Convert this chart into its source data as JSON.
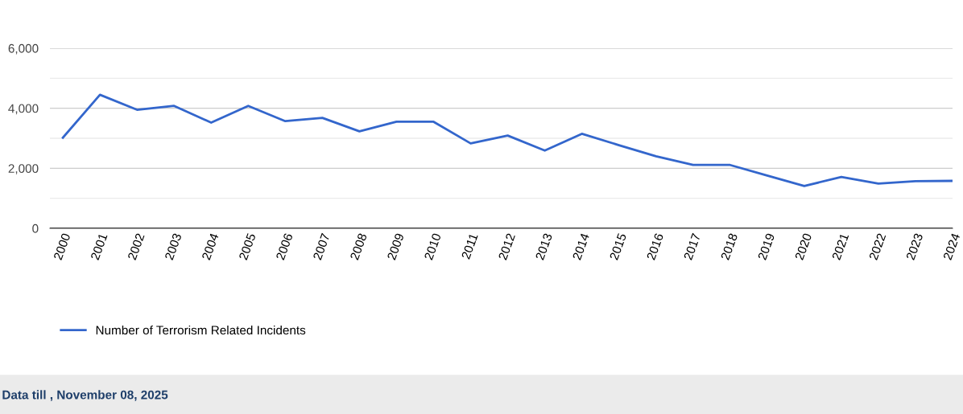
{
  "chart_data": {
    "type": "line",
    "categories": [
      "2000",
      "2001",
      "2002",
      "2003",
      "2004",
      "2005",
      "2006",
      "2007",
      "2008",
      "2009",
      "2010",
      "2011",
      "2012",
      "2013",
      "2014",
      "2015",
      "2016",
      "2017",
      "2018",
      "2019",
      "2020",
      "2021",
      "2022",
      "2023",
      "2024"
    ],
    "series": [
      {
        "name": "Number of Terrorism Related Incidents",
        "color": "#3366cc",
        "values": [
          3020,
          4450,
          3950,
          4080,
          3520,
          4080,
          3570,
          3680,
          3230,
          3550,
          3550,
          2830,
          3090,
          2590,
          3150,
          2770,
          2400,
          2110,
          2110,
          1760,
          1410,
          1710,
          1490,
          1570,
          1580
        ]
      }
    ],
    "ylim": [
      0,
      6000
    ],
    "yticks": [
      0,
      {
        "value": 1000,
        "label": null
      },
      {
        "value": 2000,
        "label": "2,000"
      },
      {
        "value": 3000,
        "label": null
      },
      {
        "value": 4000,
        "label": "4,000"
      },
      {
        "value": 5000,
        "label": null
      },
      {
        "value": 6000,
        "label": "6,000"
      }
    ],
    "grid": "y",
    "legend": "bottom left",
    "marker": "none",
    "line_style": "solid",
    "annotations": [
      "Data till , November 08, 2025"
    ]
  }
}
